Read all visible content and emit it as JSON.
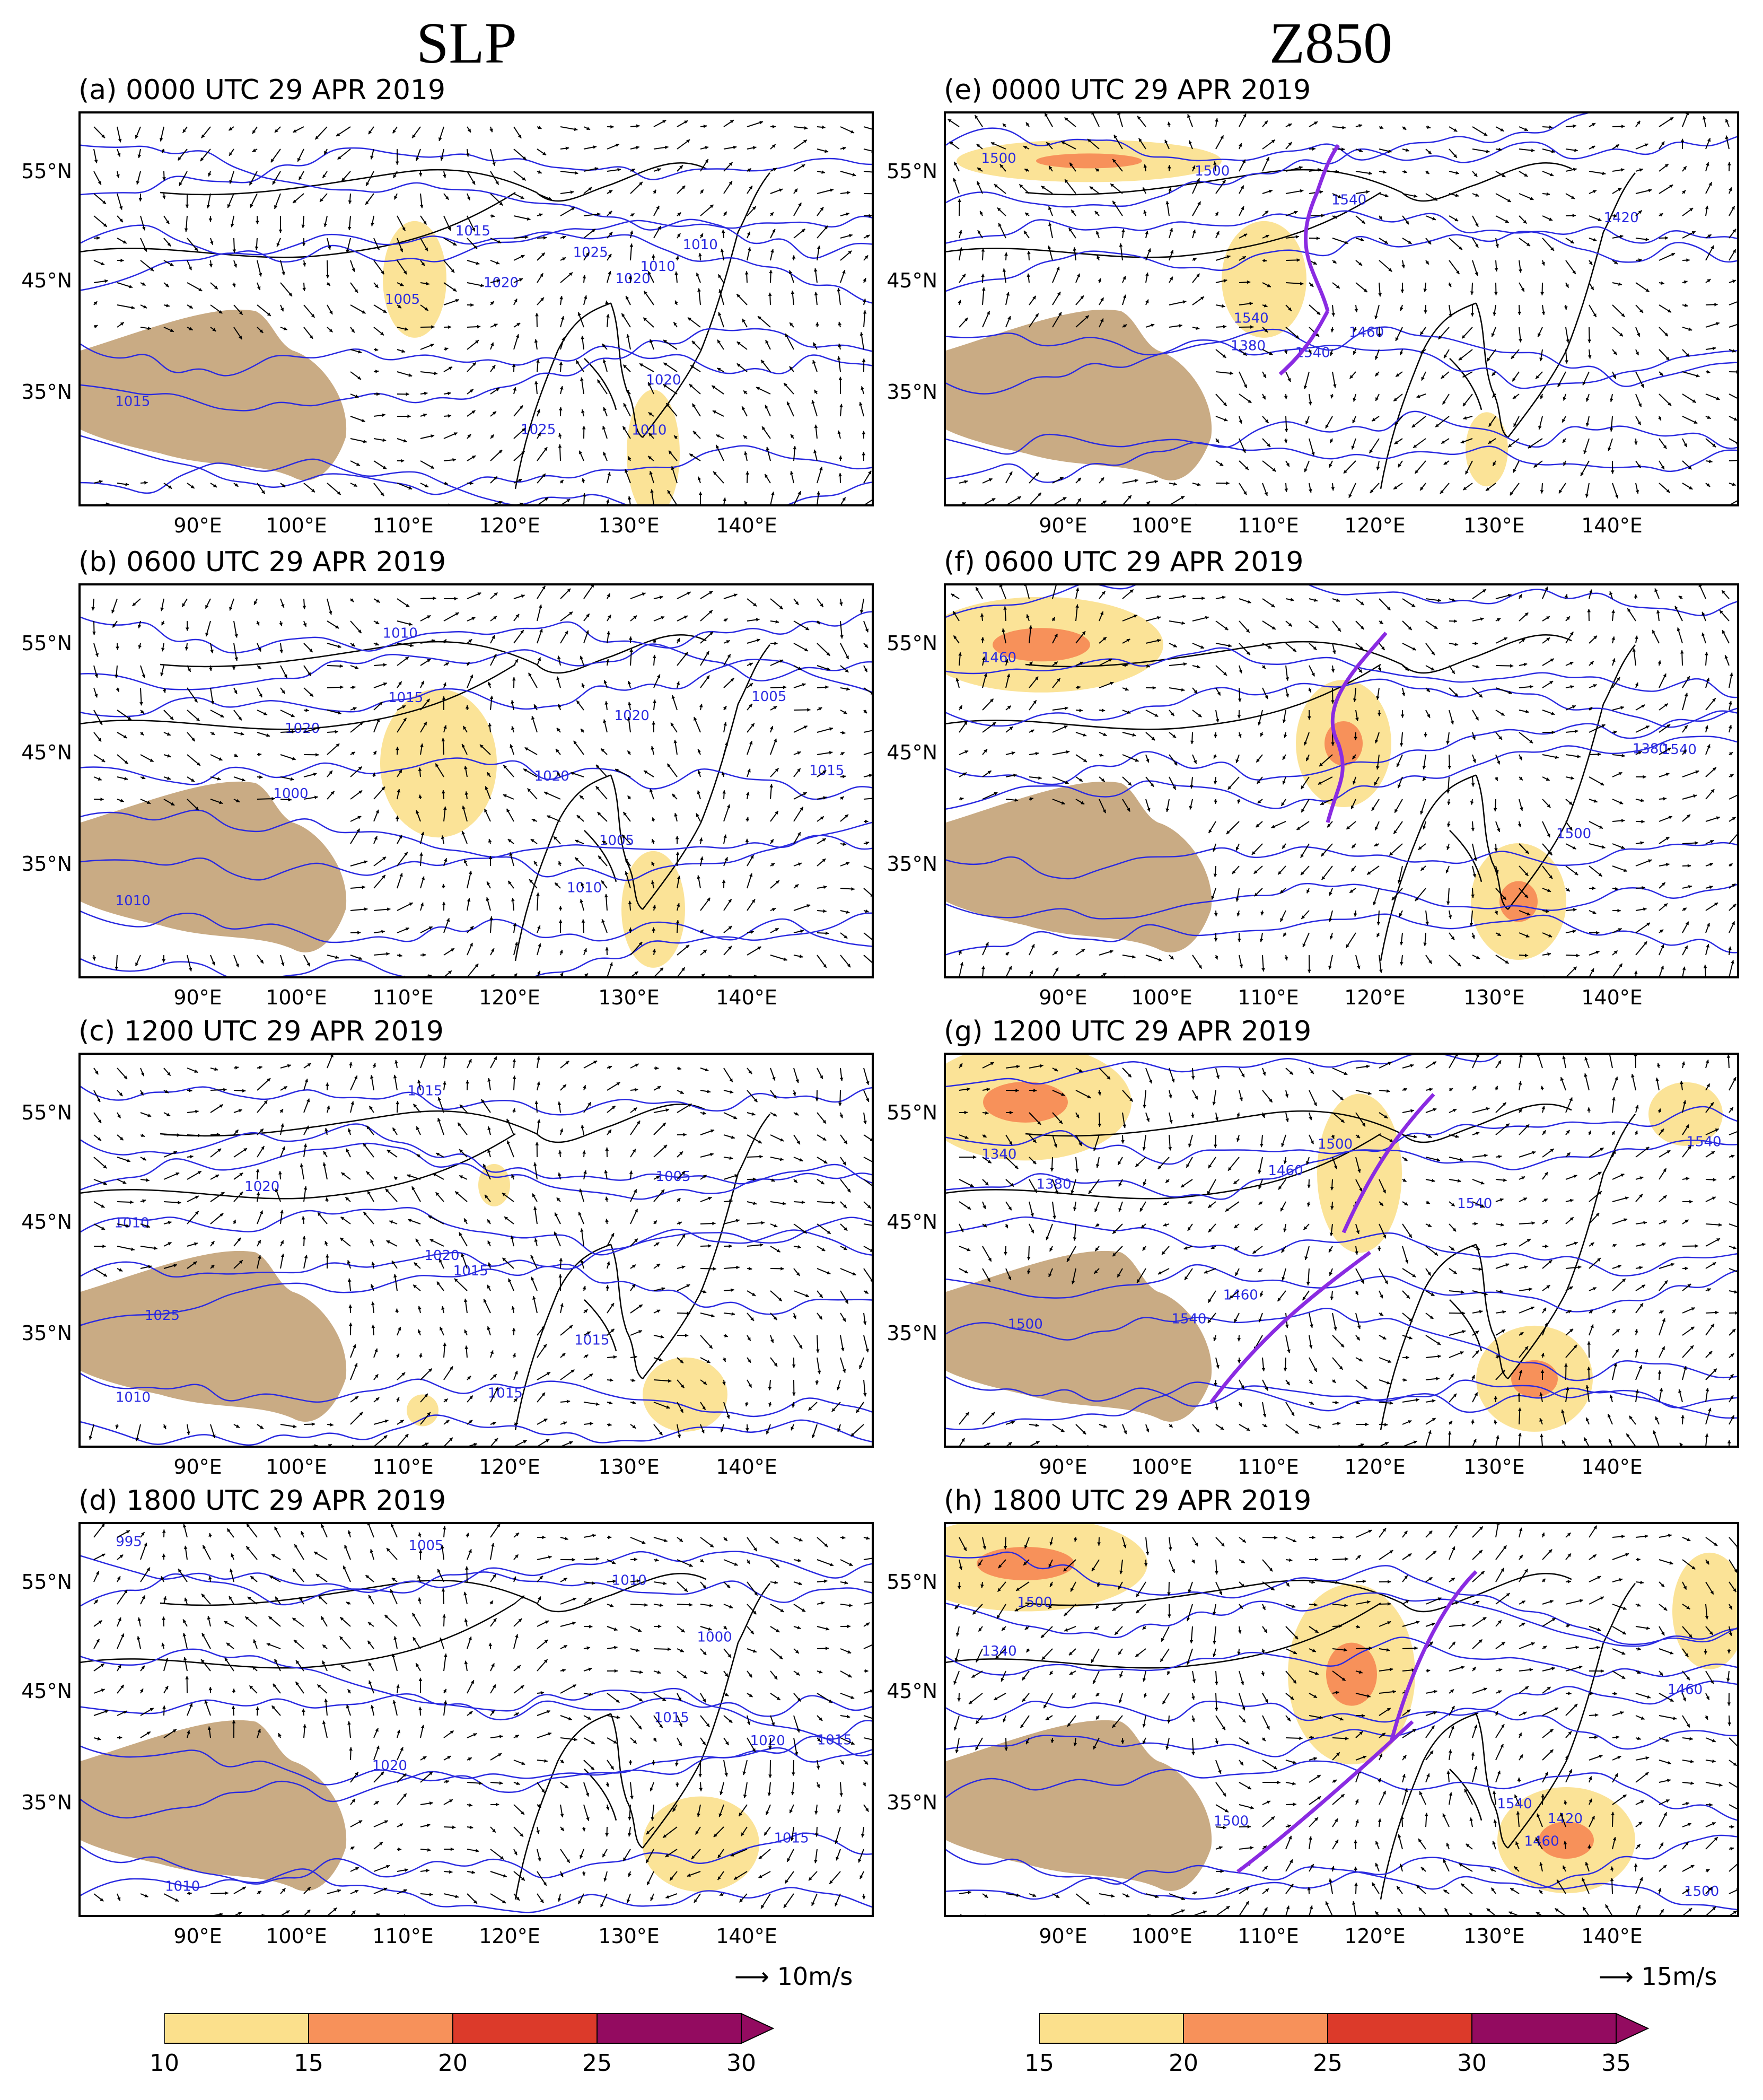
{
  "columns": [
    {
      "title": "SLP",
      "ref_vector": "10m/s",
      "colorbar": {
        "ticks": [
          "10",
          "15",
          "20",
          "25",
          "30"
        ],
        "colors": [
          "#fbe08c",
          "#f7915a",
          "#dc3a2a",
          "#930b60"
        ]
      }
    },
    {
      "title": "Z850",
      "ref_vector": "15m/s",
      "colorbar": {
        "ticks": [
          "15",
          "20",
          "25",
          "30",
          "35"
        ],
        "colors": [
          "#fbe08c",
          "#f7915a",
          "#dc3a2a",
          "#930b60"
        ]
      }
    }
  ],
  "panels": [
    {
      "title": "(a) 0000 UTC 29 APR 2019",
      "contour_labels": [
        "1015",
        "1010",
        "1005",
        "1020",
        "1025",
        "1020",
        "1015",
        "1010",
        "1025",
        "1020",
        "1010"
      ]
    },
    {
      "title": "(b) 0600 UTC 29 APR 2019",
      "contour_labels": [
        "1010",
        "1000",
        "1005",
        "1015",
        "1020",
        "1010",
        "1020",
        "1015",
        "1010",
        "1020",
        "1005"
      ]
    },
    {
      "title": "(c) 1200 UTC 29 APR 2019",
      "contour_labels": [
        "1010",
        "1015",
        "1015",
        "1020",
        "1005",
        "1015",
        "1010",
        "1025",
        "1020",
        "1015"
      ]
    },
    {
      "title": "(d) 1800 UTC 29 APR 2019",
      "contour_labels": [
        "995",
        "1010",
        "1015",
        "1020",
        "1000",
        "1005",
        "1015",
        "1010",
        "1015",
        "1020"
      ]
    },
    {
      "title": "(e) 0000 UTC 29 APR 2019",
      "contour_labels": [
        "1500",
        "1540",
        "1540",
        "1380",
        "1420",
        "1500",
        "1460",
        "1540"
      ]
    },
    {
      "title": "(f) 0600 UTC 29 APR 2019",
      "contour_labels": [
        "1460",
        "1380",
        "1540",
        "1500"
      ]
    },
    {
      "title": "(g) 1200 UTC 29 APR 2019",
      "contour_labels": [
        "1340",
        "1460",
        "1500",
        "1540",
        "1540",
        "1380",
        "1500",
        "1540",
        "1460"
      ]
    },
    {
      "title": "(h) 1800 UTC 29 APR 2019",
      "contour_labels": [
        "1340",
        "1460",
        "1500",
        "1540",
        "1500",
        "1460",
        "1420",
        "1500"
      ]
    }
  ],
  "axes": {
    "lat_labels": [
      "55°N",
      "45°N",
      "35°N"
    ],
    "lon_labels": [
      "90°E",
      "100°E",
      "110°E",
      "120°E",
      "130°E",
      "140°E"
    ]
  },
  "colors": {
    "contour": "#2a2ae0",
    "plateau": "#c9ab84",
    "front": "#8a2be2",
    "land": "#000000"
  }
}
